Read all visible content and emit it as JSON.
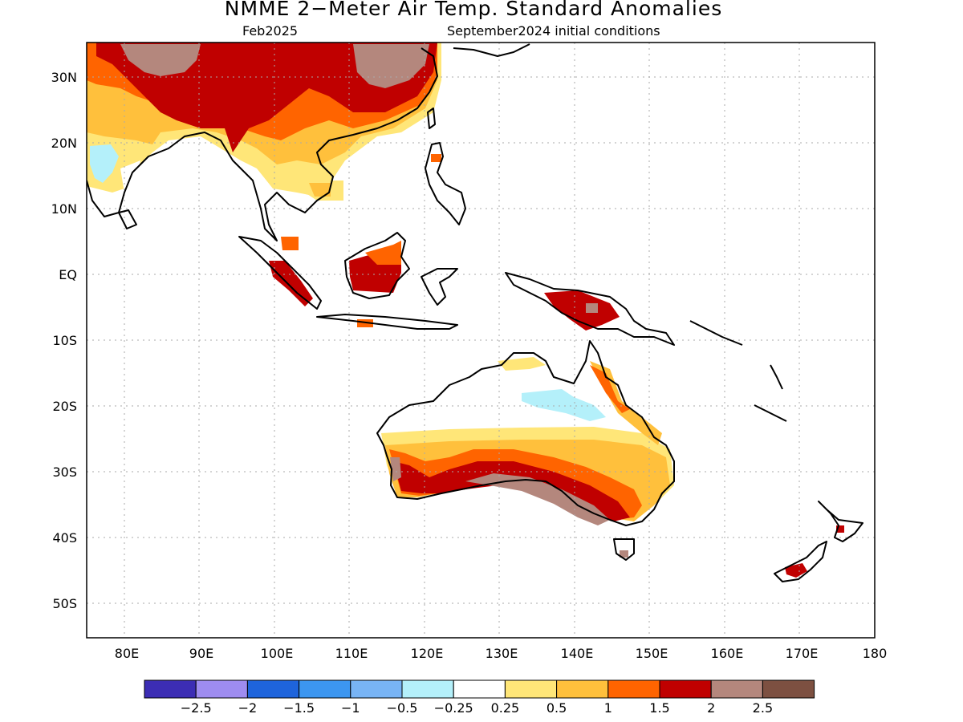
{
  "header": {
    "title": "NMME 2−Meter Air Temp. Standard Anomalies",
    "target_month": "Feb2025",
    "initial_conditions": "September2024 initial conditions"
  },
  "map": {
    "lat_labels": [
      "30N",
      "20N",
      "10N",
      "EQ",
      "10S",
      "20S",
      "30S",
      "40S",
      "50S"
    ],
    "lon_labels": [
      "80E",
      "90E",
      "100E",
      "110E",
      "120E",
      "130E",
      "140E",
      "150E",
      "160E",
      "170E",
      "180"
    ]
  },
  "colorbar": {
    "colors": [
      "#3c2db4",
      "#9e8cf0",
      "#1e64dc",
      "#3c96f0",
      "#78b4f5",
      "#b4f0fa",
      "#ffffff",
      "#ffe678",
      "#ffc03c",
      "#ff6400",
      "#c00000",
      "#b4877d",
      "#7d5041"
    ],
    "labels": [
      "−2.5",
      "−2",
      "−1.5",
      "−1",
      "−0.5",
      "−0.25",
      "0.25",
      "0.5",
      "1",
      "1.5",
      "2",
      "2.5"
    ]
  }
}
